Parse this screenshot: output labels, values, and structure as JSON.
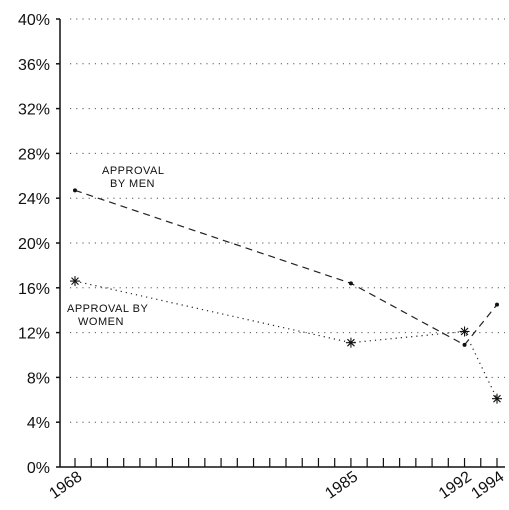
{
  "chart_data": {
    "type": "line",
    "x": [
      1968,
      1985,
      1992,
      1994
    ],
    "xticks": [
      "1968",
      "1985",
      "1992",
      "1994"
    ],
    "xlim": [
      1968,
      1994
    ],
    "ylim": [
      0,
      40
    ],
    "yticks": [
      "0%",
      "4%",
      "8%",
      "12%",
      "16%",
      "20%",
      "24%",
      "28%",
      "32%",
      "36%",
      "40%"
    ],
    "grid": "horizontal dotted",
    "series": [
      {
        "name": "APPROVAL BY MEN",
        "label_lines": [
          "APPROVAL",
          "BY MEN"
        ],
        "marker": "dot",
        "dash": "dashed",
        "values": [
          24.7,
          16.4,
          10.9,
          14.5
        ]
      },
      {
        "name": "APPROVAL BY WOMEN",
        "label_lines": [
          "APPROVAL BY",
          "WOMEN"
        ],
        "marker": "star",
        "dash": "dotted",
        "values": [
          16.6,
          11.1,
          12.1,
          6.1
        ]
      }
    ]
  }
}
